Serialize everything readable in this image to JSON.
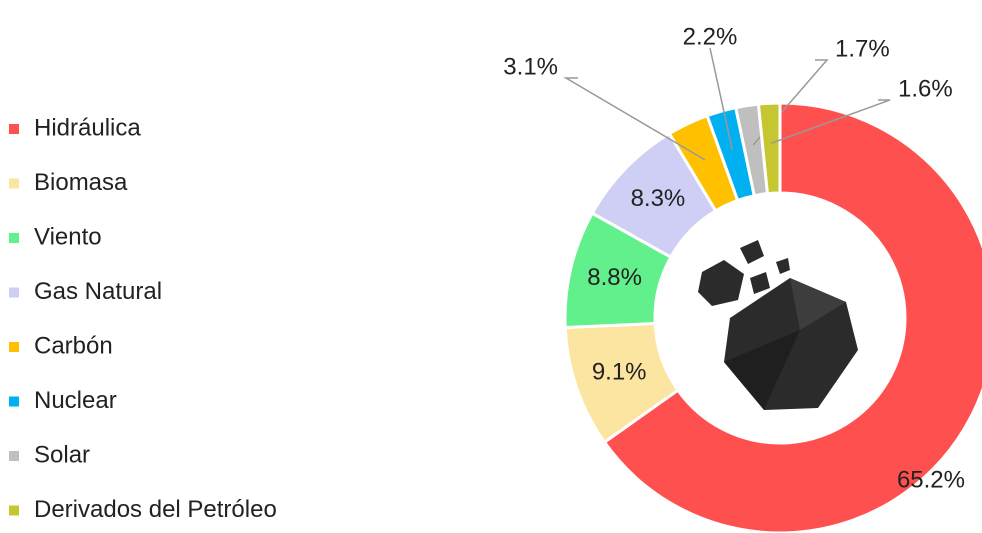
{
  "chart_data": {
    "type": "donut",
    "categories": [
      "Hidráulica",
      "Biomasa",
      "Viento",
      "Gas Natural",
      "Carbón",
      "Nuclear",
      "Solar",
      "Derivados del Petróleo"
    ],
    "values": [
      65.2,
      9.1,
      8.8,
      8.3,
      3.1,
      2.2,
      1.7,
      1.6
    ],
    "value_labels": [
      "65.2%",
      "9.1%",
      "8.8%",
      "8.3%",
      "3.1%",
      "2.2%",
      "1.7%",
      "1.6%"
    ],
    "colors": [
      "#ff5050",
      "#fbe5a0",
      "#62f08c",
      "#cfcff5",
      "#ffc000",
      "#00b0f0",
      "#bfbfbf",
      "#c6c630"
    ],
    "legend": "left"
  }
}
